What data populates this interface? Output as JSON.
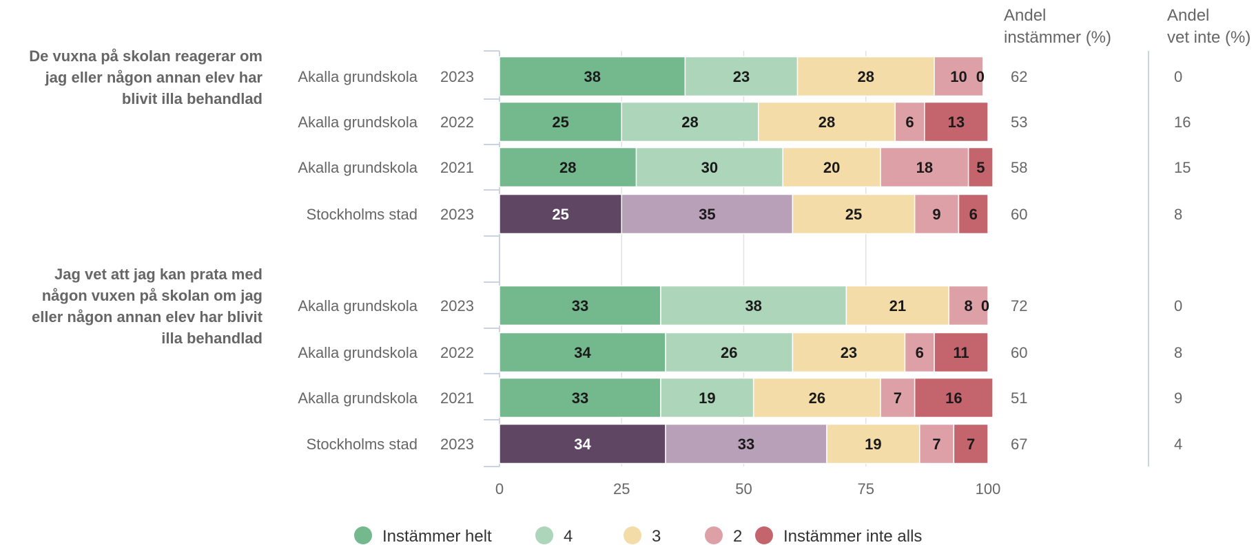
{
  "chart_data": {
    "type": "bar",
    "orientation": "horizontal",
    "stacked": true,
    "xlim": [
      0,
      100
    ],
    "x_ticks": [
      "0",
      "25",
      "50",
      "75",
      "100"
    ],
    "grid": true,
    "legend_position": "bottom",
    "legend": [
      {
        "label": "Instämmer helt",
        "color": "#74b98e"
      },
      {
        "label": "4",
        "color": "#acd5ba"
      },
      {
        "label": "3",
        "color": "#f3dca8"
      },
      {
        "label": "2",
        "color": "#dca0a6"
      },
      {
        "label": "Instämmer inte alls",
        "color": "#c4646c"
      }
    ],
    "stockholm_colors": [
      "#5f4763",
      "#b9a0b9",
      "#f3dca8",
      "#dca0a6",
      "#c4646c"
    ],
    "header_line1": "Andel",
    "side_columns": [
      {
        "header": "instämmer (%)"
      },
      {
        "header": "vet inte (%)"
      }
    ],
    "groups": [
      {
        "question": [
          "De vuxna på skolan reagerar om",
          "jag eller någon annan elev har",
          "blivit illa behandlad"
        ],
        "rows": [
          {
            "school": "Akalla grundskola",
            "year": "2023",
            "values": [
              38,
              23,
              28,
              10,
              0
            ],
            "andel_instammer": "62",
            "andel_vet_inte": "0"
          },
          {
            "school": "Akalla grundskola",
            "year": "2022",
            "values": [
              25,
              28,
              28,
              6,
              13
            ],
            "andel_instammer": "53",
            "andel_vet_inte": "16"
          },
          {
            "school": "Akalla grundskola",
            "year": "2021",
            "values": [
              28,
              30,
              20,
              18,
              5
            ],
            "andel_instammer": "58",
            "andel_vet_inte": "15"
          },
          {
            "school": "Stockholms stad",
            "year": "2023",
            "values": [
              25,
              35,
              25,
              9,
              6
            ],
            "andel_instammer": "60",
            "andel_vet_inte": "8"
          }
        ]
      },
      {
        "question": [
          "Jag vet att jag kan prata med",
          "någon vuxen på skolan om jag",
          "eller någon annan elev har blivit",
          "illa behandlad"
        ],
        "rows": [
          {
            "school": "Akalla grundskola",
            "year": "2023",
            "values": [
              33,
              38,
              21,
              8,
              0
            ],
            "andel_instammer": "72",
            "andel_vet_inte": "0"
          },
          {
            "school": "Akalla grundskola",
            "year": "2022",
            "values": [
              34,
              26,
              23,
              6,
              11
            ],
            "andel_instammer": "60",
            "andel_vet_inte": "8"
          },
          {
            "school": "Akalla grundskola",
            "year": "2021",
            "values": [
              33,
              19,
              26,
              7,
              16
            ],
            "andel_instammer": "51",
            "andel_vet_inte": "9"
          },
          {
            "school": "Stockholms stad",
            "year": "2023",
            "values": [
              34,
              33,
              19,
              7,
              7
            ],
            "andel_instammer": "67",
            "andel_vet_inte": "4"
          }
        ]
      }
    ]
  }
}
